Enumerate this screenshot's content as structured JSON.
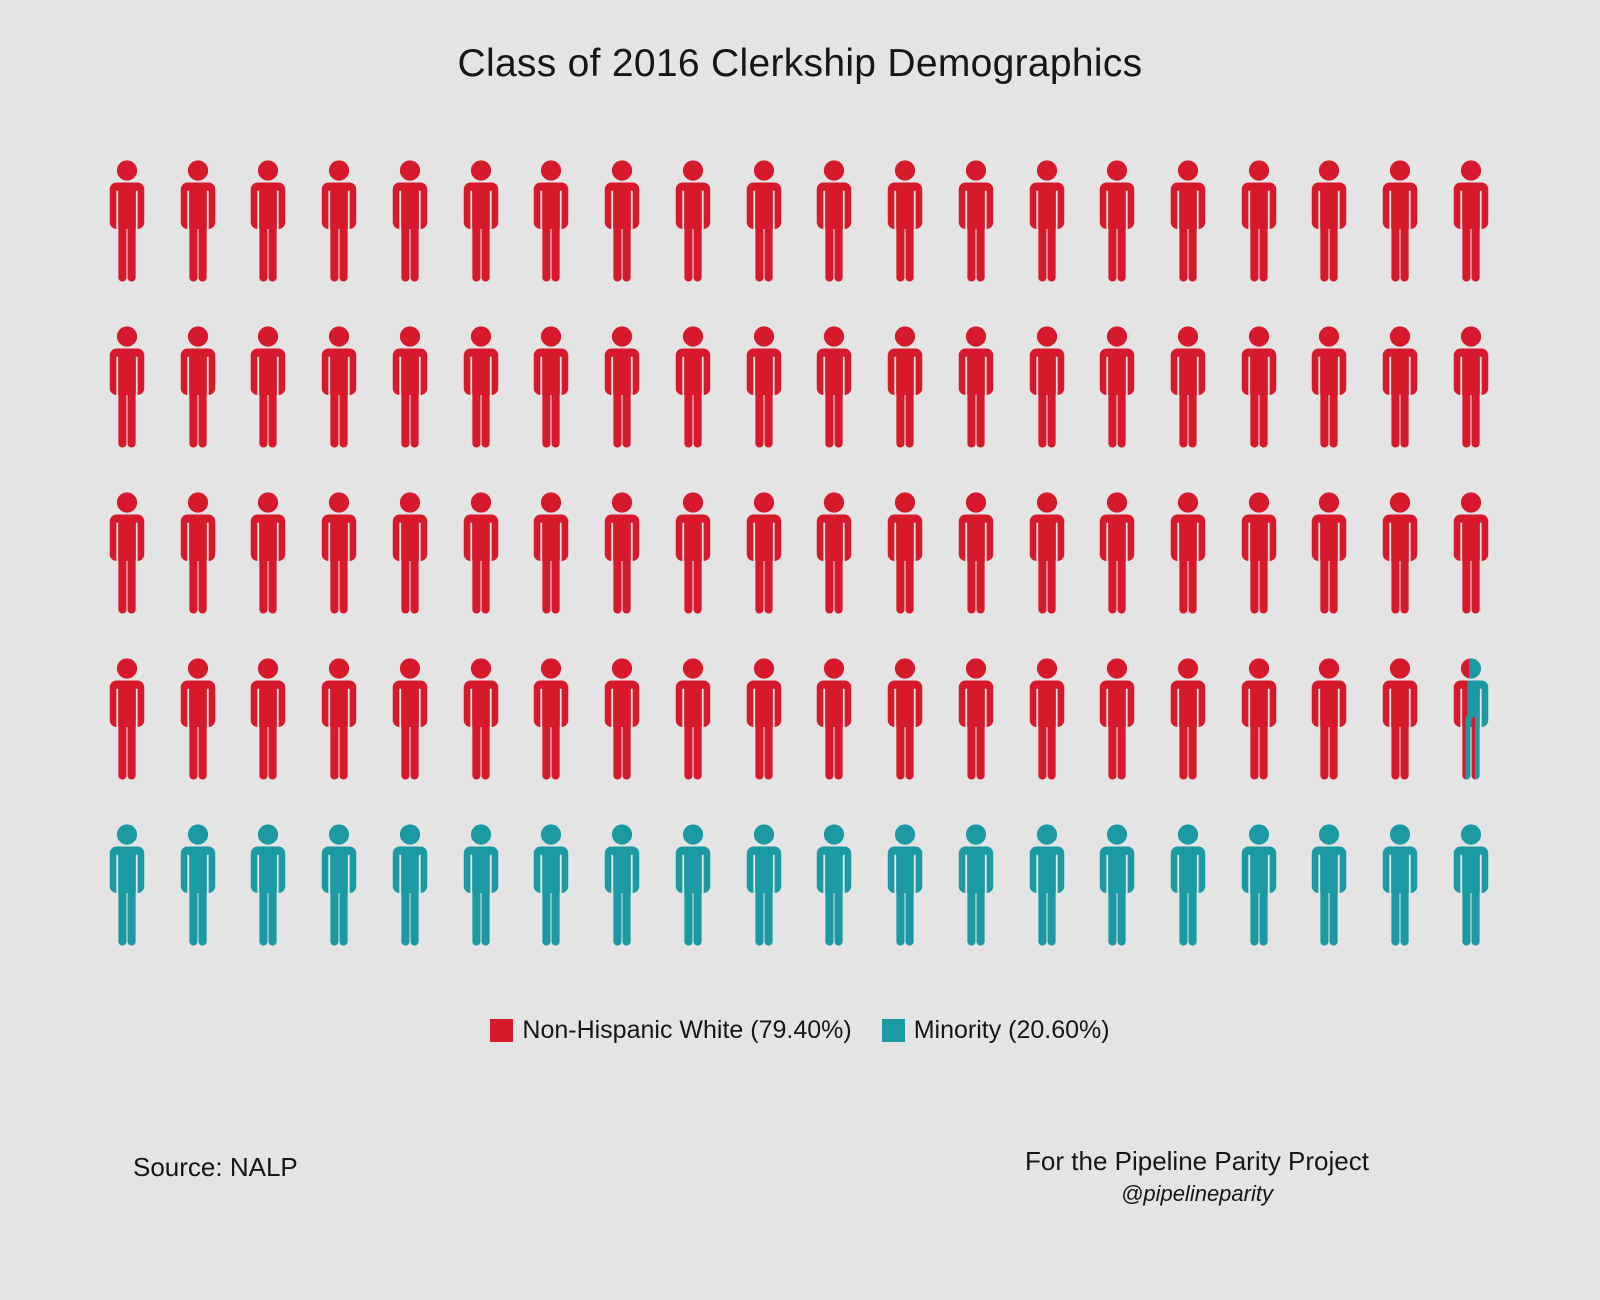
{
  "title": "Class of 2016 Clerkship Demographics",
  "colors": {
    "background": "#e5e4e4",
    "text": "#161616",
    "non_hispanic_white": "#d7192c",
    "minority": "#1b9aa3"
  },
  "chart_data": {
    "type": "pictogram",
    "title": "Class of 2016 Clerkship Demographics",
    "grid": {
      "rows": 5,
      "columns": 20,
      "total_icons": 100,
      "percent_per_icon": 1
    },
    "series": [
      {
        "name": "Non-Hispanic White",
        "percent": 79.4,
        "legend_label": "Non-Hispanic White (79.40%)",
        "color": "#d7192c",
        "full_icons": 79,
        "partial_icon_fraction": 0.4
      },
      {
        "name": "Minority",
        "percent": 20.6,
        "legend_label": "Minority (20.60%)",
        "color": "#1b9aa3",
        "full_icons": 20,
        "partial_icon_fraction": 0.6
      }
    ],
    "legend_position": "bottom-center",
    "fill_order": "left-to-right, top-to-bottom"
  },
  "footer": {
    "source_label": "Source: NALP",
    "credit_line": "For the Pipeline Parity Project",
    "credit_handle": "@pipelineparity"
  }
}
